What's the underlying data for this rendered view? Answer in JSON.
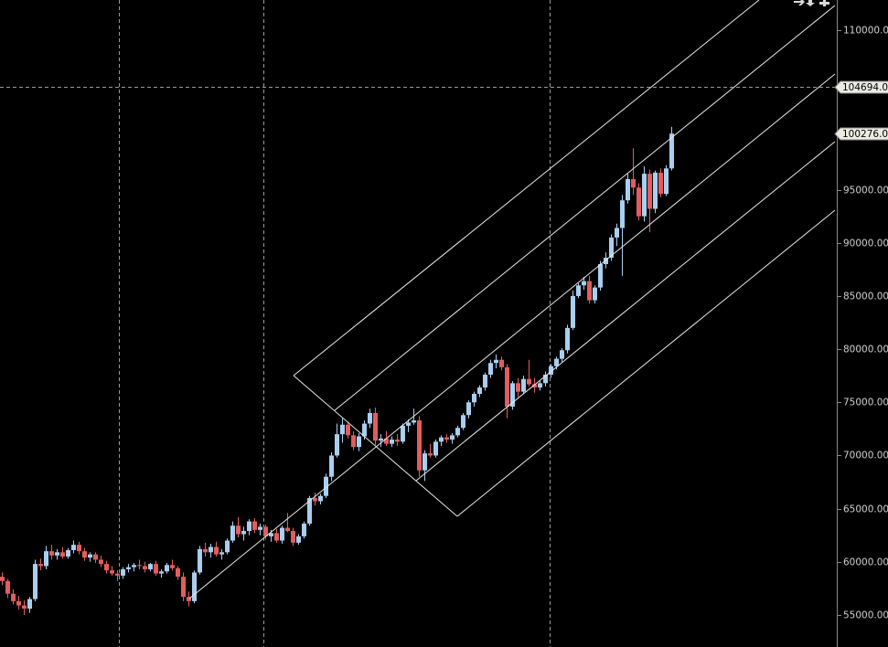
{
  "chart_data": {
    "type": "candlestick",
    "up_color": "#a9cff0",
    "down_color": "#e35d5d",
    "ylim": [
      51990,
      112840
    ],
    "yticks": [
      {
        "value": 55000,
        "label": "55000.00"
      },
      {
        "value": 60000,
        "label": "60000.00"
      },
      {
        "value": 65000,
        "label": "65000.00"
      },
      {
        "value": 70000,
        "label": "70000.00"
      },
      {
        "value": 75000,
        "label": "75000.00"
      },
      {
        "value": 80000,
        "label": "80000.00"
      },
      {
        "value": 85000,
        "label": "85000.00"
      },
      {
        "value": 90000,
        "label": "90000.00"
      },
      {
        "value": 95000,
        "label": "95000.00"
      },
      {
        "value": 110000,
        "label": "110000.0"
      }
    ],
    "price_tags": [
      {
        "value": 104694,
        "label": "104694.0"
      },
      {
        "value": 100276,
        "label": "100276.0"
      }
    ],
    "candles": [
      [
        58600,
        59000,
        57800,
        58200
      ],
      [
        58200,
        58400,
        56600,
        57000
      ],
      [
        57000,
        57400,
        56000,
        56300
      ],
      [
        56300,
        56800,
        55500,
        55900
      ],
      [
        55900,
        56400,
        55000,
        55600
      ],
      [
        55600,
        56700,
        55200,
        56500
      ],
      [
        56500,
        60200,
        56300,
        59800
      ],
      [
        59800,
        60300,
        59200,
        59600
      ],
      [
        59600,
        61500,
        59300,
        61000
      ],
      [
        61000,
        61600,
        60200,
        60600
      ],
      [
        60600,
        61200,
        60200,
        60900
      ],
      [
        60900,
        61400,
        60300,
        60500
      ],
      [
        60500,
        61300,
        60300,
        61100
      ],
      [
        61100,
        62000,
        60800,
        61600
      ],
      [
        61600,
        61900,
        60700,
        61000
      ],
      [
        61000,
        61300,
        60100,
        60400
      ],
      [
        60400,
        60900,
        60000,
        60700
      ],
      [
        60700,
        60900,
        59900,
        60200
      ],
      [
        60200,
        60600,
        59500,
        59800
      ],
      [
        59800,
        60100,
        58900,
        59200
      ],
      [
        59200,
        59600,
        58700,
        58900
      ],
      [
        58900,
        59200,
        58200,
        58700
      ],
      [
        58700,
        59500,
        58400,
        59300
      ],
      [
        59300,
        59800,
        59000,
        59500
      ],
      [
        59500,
        59900,
        59100,
        59700
      ],
      [
        59700,
        60200,
        59300,
        59600
      ],
      [
        59600,
        60000,
        59000,
        59300
      ],
      [
        59300,
        59900,
        59100,
        59800
      ],
      [
        59800,
        60100,
        58700,
        58900
      ],
      [
        58900,
        59300,
        58500,
        59100
      ],
      [
        59100,
        59900,
        58900,
        59700
      ],
      [
        59700,
        60200,
        59200,
        59400
      ],
      [
        59400,
        59600,
        58300,
        58600
      ],
      [
        58600,
        59000,
        56300,
        56700
      ],
      [
        56700,
        57200,
        55800,
        56300
      ],
      [
        56300,
        59200,
        56100,
        59000
      ],
      [
        59000,
        61500,
        58800,
        61200
      ],
      [
        61200,
        61800,
        60500,
        60900
      ],
      [
        60900,
        61700,
        60400,
        61400
      ],
      [
        61400,
        61900,
        60500,
        60700
      ],
      [
        60700,
        61200,
        60200,
        60900
      ],
      [
        60900,
        62200,
        60700,
        62000
      ],
      [
        62000,
        63800,
        61800,
        63400
      ],
      [
        63400,
        64200,
        62300,
        62600
      ],
      [
        62600,
        63300,
        62000,
        62900
      ],
      [
        62900,
        64000,
        62500,
        63800
      ],
      [
        63800,
        64100,
        62700,
        63000
      ],
      [
        63000,
        63600,
        62500,
        63300
      ],
      [
        63300,
        63500,
        62100,
        62400
      ],
      [
        62400,
        63000,
        61900,
        62700
      ],
      [
        62700,
        63100,
        61800,
        62000
      ],
      [
        62000,
        63400,
        61700,
        63200
      ],
      [
        63200,
        64600,
        62800,
        62900
      ],
      [
        62900,
        63200,
        61500,
        61800
      ],
      [
        61800,
        62600,
        61600,
        62400
      ],
      [
        62400,
        63800,
        62200,
        63600
      ],
      [
        63600,
        66200,
        63400,
        66000
      ],
      [
        66000,
        66500,
        65300,
        65700
      ],
      [
        65700,
        66400,
        65400,
        66200
      ],
      [
        66200,
        68300,
        66000,
        68000
      ],
      [
        68000,
        70300,
        67600,
        70000
      ],
      [
        70000,
        73000,
        69800,
        72000
      ],
      [
        72000,
        73500,
        71200,
        72900
      ],
      [
        72900,
        73200,
        71600,
        71900
      ],
      [
        71900,
        72300,
        70500,
        70800
      ],
      [
        70800,
        72100,
        70400,
        71800
      ],
      [
        71800,
        73300,
        71500,
        73000
      ],
      [
        73000,
        74400,
        72600,
        74000
      ],
      [
        74000,
        74500,
        71000,
        71400
      ],
      [
        71400,
        72000,
        70800,
        71600
      ],
      [
        71600,
        72300,
        70900,
        71100
      ],
      [
        71100,
        71800,
        70800,
        71500
      ],
      [
        71500,
        72000,
        70900,
        71300
      ],
      [
        71300,
        73000,
        71100,
        72800
      ],
      [
        72800,
        73400,
        72200,
        73100
      ],
      [
        73100,
        74400,
        72900,
        73300
      ],
      [
        73300,
        73700,
        68000,
        68600
      ],
      [
        68600,
        70500,
        67600,
        70200
      ],
      [
        70200,
        71100,
        69800,
        70000
      ],
      [
        70000,
        71500,
        69800,
        71300
      ],
      [
        71300,
        71900,
        70900,
        71700
      ],
      [
        71700,
        72000,
        71200,
        71500
      ],
      [
        71500,
        72100,
        71100,
        71900
      ],
      [
        71900,
        72800,
        71700,
        72600
      ],
      [
        72600,
        74000,
        72400,
        73800
      ],
      [
        73800,
        75200,
        73500,
        75000
      ],
      [
        75000,
        76000,
        74600,
        75800
      ],
      [
        75800,
        76600,
        75500,
        76400
      ],
      [
        76400,
        77800,
        76100,
        77600
      ],
      [
        77600,
        79000,
        77300,
        78700
      ],
      [
        78700,
        79500,
        78200,
        79000
      ],
      [
        79000,
        79300,
        78000,
        78300
      ],
      [
        78300,
        78600,
        73500,
        74600
      ],
      [
        74600,
        77000,
        74300,
        76800
      ],
      [
        76800,
        77300,
        75500,
        76000
      ],
      [
        76000,
        77500,
        75800,
        77200
      ],
      [
        77200,
        79000,
        76500,
        76700
      ],
      [
        76700,
        77300,
        75900,
        76400
      ],
      [
        76400,
        77000,
        76100,
        76800
      ],
      [
        76800,
        77900,
        76500,
        77600
      ],
      [
        77600,
        78600,
        77300,
        78400
      ],
      [
        78400,
        79300,
        78100,
        79100
      ],
      [
        79100,
        80100,
        78800,
        79900
      ],
      [
        79900,
        82300,
        79600,
        82000
      ],
      [
        82000,
        85500,
        81800,
        85000
      ],
      [
        85000,
        86200,
        84800,
        86000
      ],
      [
        86000,
        86800,
        85600,
        86400
      ],
      [
        86400,
        86900,
        84300,
        84600
      ],
      [
        84600,
        86000,
        84300,
        85800
      ],
      [
        85800,
        88300,
        85500,
        88000
      ],
      [
        88000,
        89100,
        87600,
        88600
      ],
      [
        88600,
        90800,
        88300,
        90500
      ],
      [
        90500,
        91800,
        89700,
        91400
      ],
      [
        91400,
        94500,
        86900,
        94000
      ],
      [
        94000,
        96500,
        93700,
        96000
      ],
      [
        96000,
        98900,
        94500,
        95200
      ],
      [
        95200,
        95600,
        92100,
        92500
      ],
      [
        92500,
        97200,
        92000,
        96500
      ],
      [
        96500,
        96900,
        91000,
        93200
      ],
      [
        93200,
        96800,
        92800,
        96600
      ],
      [
        96600,
        97000,
        94300,
        94600
      ],
      [
        94600,
        97300,
        94400,
        97000
      ],
      [
        97000,
        100900,
        96800,
        100276
      ]
    ]
  }
}
